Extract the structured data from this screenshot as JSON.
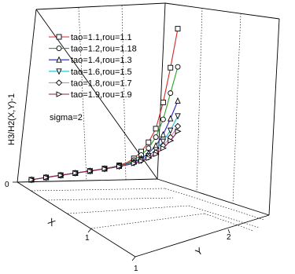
{
  "chart_data": {
    "type": "line",
    "title": "",
    "zlabel": "H3/H2(X,Y)-1",
    "xlabel": "X",
    "ylabel": "Y",
    "ztick_labels": [
      "0"
    ],
    "xtick_labels": [
      "1"
    ],
    "ytick_labels": [
      "1",
      "2"
    ],
    "annotation": "sigma=2",
    "legend_position": "top-left",
    "grid": true,
    "x": [
      0.0,
      0.1,
      0.2,
      0.3,
      0.4,
      0.5,
      0.6,
      0.7,
      0.8,
      0.9,
      1.0,
      1.1,
      1.2,
      1.3,
      1.4,
      1.5,
      1.6,
      1.7,
      1.8,
      1.9,
      2.0
    ],
    "series": [
      {
        "name": "tao=1.1,rou=1.1",
        "color": "#d62728",
        "marker": "square",
        "values": [
          0,
          0,
          0,
          0,
          0,
          0,
          0,
          0,
          0,
          0.002,
          0.005,
          0.01,
          0.02,
          0.04,
          0.08,
          0.15,
          0.25,
          0.4,
          0.7,
          1.1,
          1.55
        ]
      },
      {
        "name": "tao=1.2,rou=1.18",
        "color": "#2ca02c",
        "marker": "circle",
        "values": [
          0,
          0,
          0,
          0,
          0,
          0,
          0,
          0,
          0,
          0.002,
          0.004,
          0.008,
          0.015,
          0.03,
          0.06,
          0.11,
          0.18,
          0.3,
          0.5,
          0.8,
          1.1
        ]
      },
      {
        "name": "tao=1.4,rou=1.3",
        "color": "#1f1fbf",
        "marker": "triangle-up",
        "values": [
          0,
          0,
          0,
          0,
          0,
          0,
          0,
          0,
          0,
          0.001,
          0.003,
          0.006,
          0.012,
          0.022,
          0.04,
          0.07,
          0.12,
          0.2,
          0.32,
          0.5,
          0.7
        ]
      },
      {
        "name": "tao=1.6,rou=1.5",
        "color": "#17becf",
        "marker": "triangle-down",
        "values": [
          0,
          0,
          0,
          0,
          0,
          0,
          0,
          0,
          0,
          0.001,
          0.002,
          0.005,
          0.01,
          0.018,
          0.032,
          0.055,
          0.09,
          0.15,
          0.24,
          0.36,
          0.52
        ]
      },
      {
        "name": "tao=1.8,rou=1.7",
        "color": "#e377c2",
        "marker": "diamond",
        "values": [
          0,
          0,
          0,
          0,
          0,
          0,
          0,
          0,
          0,
          0.001,
          0.002,
          0.004,
          0.008,
          0.015,
          0.026,
          0.045,
          0.075,
          0.12,
          0.19,
          0.28,
          0.4
        ]
      },
      {
        "name": "tao=1.9,rou=1.9",
        "color": "#8c1c4a",
        "marker": "triangle-right",
        "values": [
          0,
          0,
          0,
          0,
          0,
          0,
          0,
          0,
          0,
          0.001,
          0.002,
          0.003,
          0.007,
          0.013,
          0.022,
          0.038,
          0.063,
          0.1,
          0.16,
          0.24,
          0.34
        ]
      }
    ]
  }
}
